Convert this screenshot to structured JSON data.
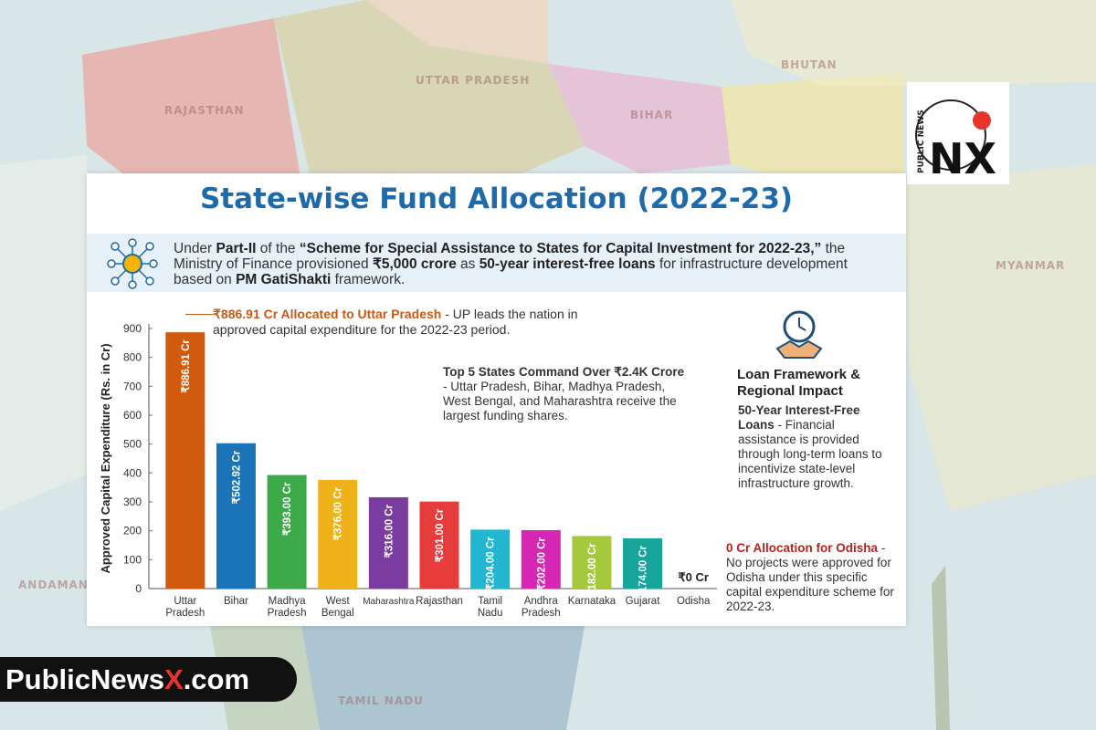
{
  "header": {
    "title": "State-wise Fund Allocation (2022-23)"
  },
  "intro": {
    "t1": "Under ",
    "b1": "Part-II",
    "t2": " of the ",
    "b2": "“Scheme for Special Assistance to States for Capital Investment for 2022-23,”",
    "t3": " the Ministry of Finance provisioned ",
    "b3": "₹5,000 crore",
    "t4": " as ",
    "b4": "50-year interest-free loans",
    "t5": " for infrastructure development based on ",
    "b5": "PM GatiShakti",
    "t6": " framework."
  },
  "callouts": {
    "up_bold": "₹886.91 Cr Allocated to Uttar Pradesh",
    "up_text": " - UP leads the nation in approved capital expenditure for the 2022-23 period.",
    "top5_bold": "Top 5 States Command Over ₹2.4K Crore",
    "top5_text": " - Uttar Pradesh, Bihar, Madhya Pradesh, West Bengal, and Maharashtra receive the largest funding shares."
  },
  "sidebar": {
    "heading": "Loan Framework & Regional Impact",
    "loan_bold": "50-Year Interest-Free Loans",
    "loan_text": " - Financial assistance is provided through long-term loans to incentivize state-level infrastructure growth.",
    "odisha_bold": "0 Cr Allocation for Odisha",
    "odisha_text": " - No projects were approved for Odisha under this specific capital expenditure scheme for 2022-23."
  },
  "brand": {
    "part1": "PublicNews",
    "part2": "X",
    "part3": ".com",
    "logo_text": "PUBLIC NEWS",
    "logo_mark": "NX"
  },
  "map_labels": [
    "RAJASTHAN",
    "UTTAR PRADESH",
    "BIHAR",
    "BHUTAN",
    "MYANMAR",
    "TAMIL NADU",
    "ANDAMAN"
  ],
  "colors": {
    "title": "#1f6aa8",
    "accent_orange": "#c45a16",
    "accent_red": "#b3241e",
    "brand_red": "#e8352c"
  },
  "chart_data": {
    "type": "bar",
    "title": "State-wise Fund Allocation (2022-23)",
    "ylabel": "Approved Capital Expenditure (Rs. in Cr)",
    "xlabel": "",
    "ylim": [
      0,
      900
    ],
    "yticks": [
      0,
      100,
      200,
      300,
      400,
      500,
      600,
      700,
      800,
      900
    ],
    "categories": [
      "Uttar Pradesh",
      "Bihar",
      "Madhya Pradesh",
      "West Bengal",
      "Maharashtra",
      "Rajasthan",
      "Tamil Nadu",
      "Andhra Pradesh",
      "Karnataka",
      "Gujarat",
      "Odisha"
    ],
    "values": [
      886.91,
      502.92,
      393.0,
      376.0,
      316.0,
      301.0,
      204.0,
      202.0,
      182.0,
      174.0,
      0
    ],
    "labels": [
      "₹886.91 Cr",
      "₹502.92 Cr",
      "₹393.00 Cr",
      "₹376.00 Cr",
      "₹316.00 Cr",
      "₹301.00 Cr",
      "₹204.00 Cr",
      "₹202.00 Cr",
      "₹182.00 Cr",
      "₹174.00 Cr",
      "₹0 Cr"
    ],
    "bar_colors": [
      "#d05a0e",
      "#1b74b8",
      "#3daa49",
      "#f0b21a",
      "#7a3c9e",
      "#e63c3c",
      "#22b6d0",
      "#d627b4",
      "#a5c83c",
      "#16a49b",
      "#cccccc"
    ]
  }
}
